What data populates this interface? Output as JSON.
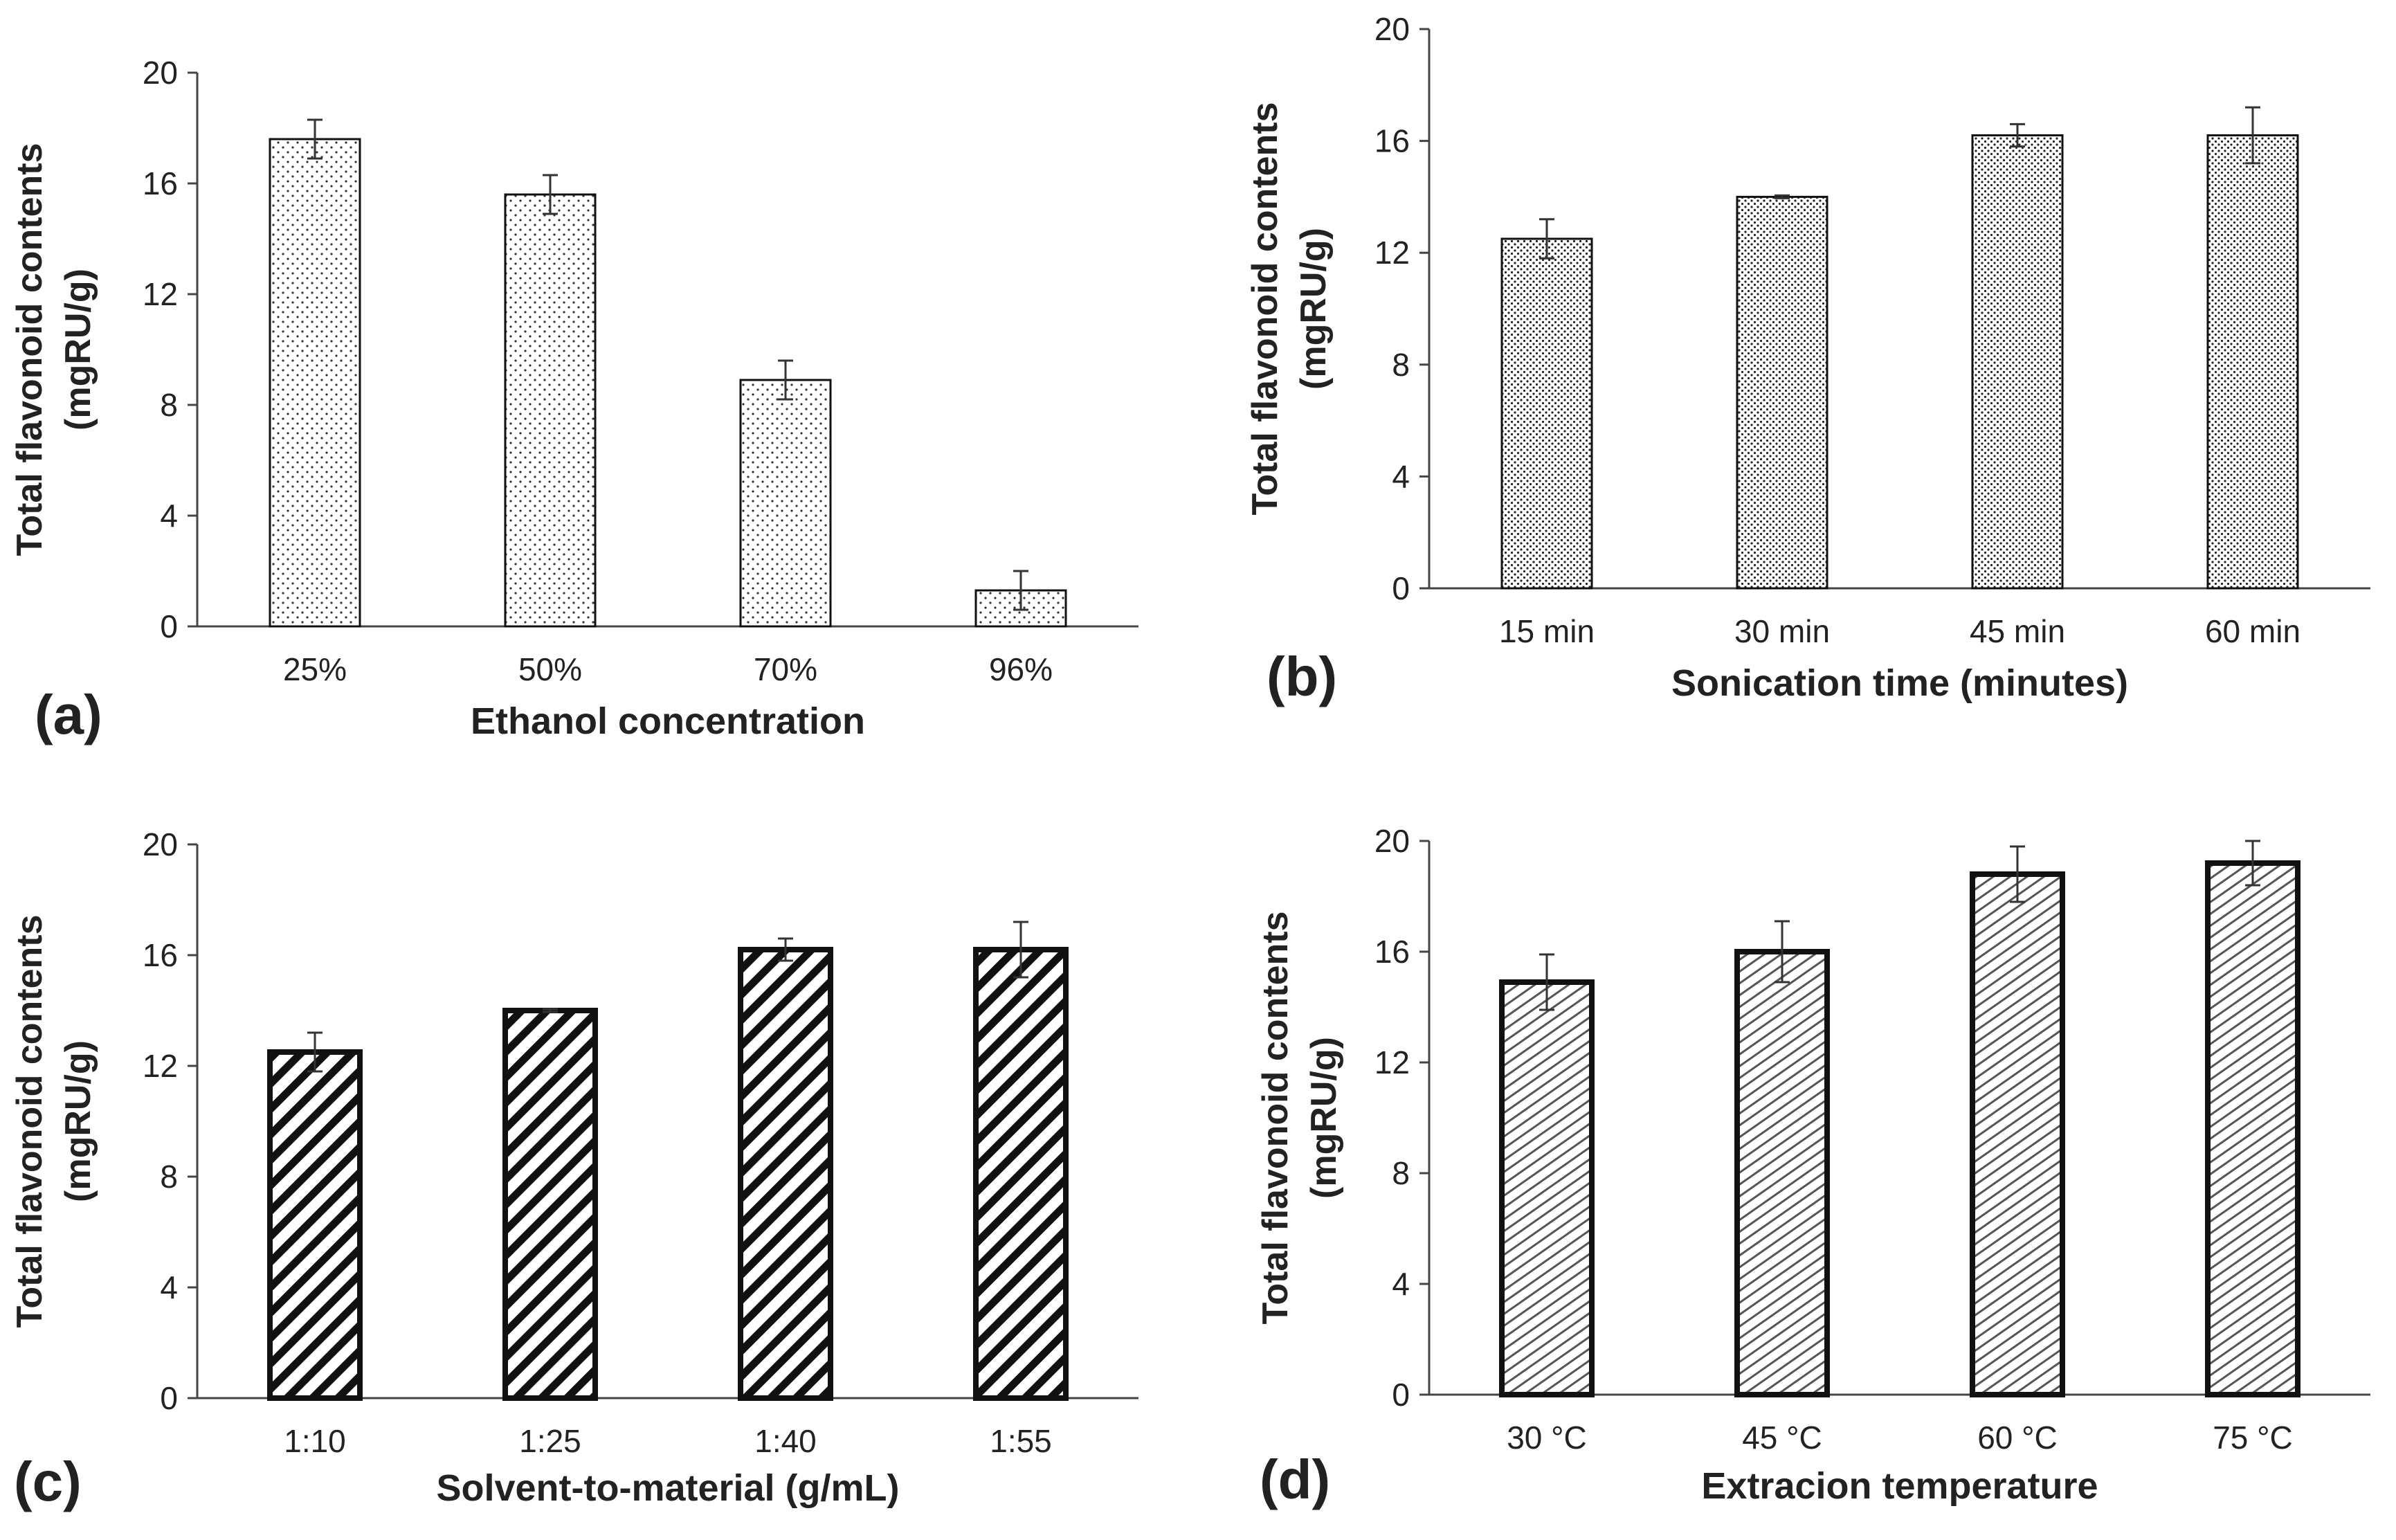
{
  "chart_data": [
    {
      "type": "bar",
      "panel_label": "(a)",
      "categories": [
        "25%",
        "50%",
        "70%",
        "96%"
      ],
      "values": [
        17.6,
        15.6,
        8.9,
        1.3
      ],
      "errors": [
        0.7,
        0.7,
        0.7,
        0.7
      ],
      "xlabel": "Ethanol concentration",
      "ylabel": [
        "Total flavonoid contents",
        "(mgRU/g)"
      ],
      "ylim": [
        0,
        20
      ],
      "yticks": [
        "0",
        "4",
        "8",
        "12",
        "16",
        "20"
      ],
      "pattern": "dots",
      "grid": false
    },
    {
      "type": "bar",
      "panel_label": "(b)",
      "categories": [
        "15 min",
        "30 min",
        "45 min",
        "60 min"
      ],
      "values": [
        12.5,
        14.0,
        16.2,
        16.2
      ],
      "errors": [
        0.7,
        0.05,
        0.4,
        1.0
      ],
      "xlabel": "Sonication time (minutes)",
      "ylabel": [
        "Total flavonoid contents",
        "(mgRU/g)"
      ],
      "ylim": [
        0,
        20
      ],
      "yticks": [
        "0",
        "4",
        "8",
        "12",
        "16",
        "20"
      ],
      "pattern": "dense-dots",
      "grid": false
    },
    {
      "type": "bar",
      "panel_label": "(c)",
      "categories": [
        "1:10",
        "1:25",
        "1:40",
        "1:55"
      ],
      "values": [
        12.5,
        14.0,
        16.2,
        16.2
      ],
      "errors": [
        0.7,
        0.05,
        0.4,
        1.0
      ],
      "xlabel": "Solvent-to-material (g/mL)",
      "ylabel": [
        "Total flavonoid contents",
        "(mgRU/g)"
      ],
      "ylim": [
        0,
        20
      ],
      "yticks": [
        "0",
        "4",
        "8",
        "12",
        "16",
        "20"
      ],
      "pattern": "wide-diagonal",
      "grid": false
    },
    {
      "type": "bar",
      "panel_label": "(d)",
      "categories": [
        "30 °C",
        "45 °C",
        "60 °C",
        "75 °C"
      ],
      "values": [
        14.9,
        16.0,
        18.8,
        19.2
      ],
      "errors": [
        1.0,
        1.1,
        1.0,
        0.8
      ],
      "xlabel": "Extracion temperature",
      "ylabel": [
        "Total flavonoid contents",
        "(mgRU/g)"
      ],
      "ylim": [
        0,
        20
      ],
      "yticks": [
        "0",
        "4",
        "8",
        "12",
        "16",
        "20"
      ],
      "pattern": "fine-diagonal",
      "grid": false
    }
  ],
  "colors": {
    "axis": "#444444",
    "bar_outline": "#111111",
    "error_bar": "#333333"
  }
}
